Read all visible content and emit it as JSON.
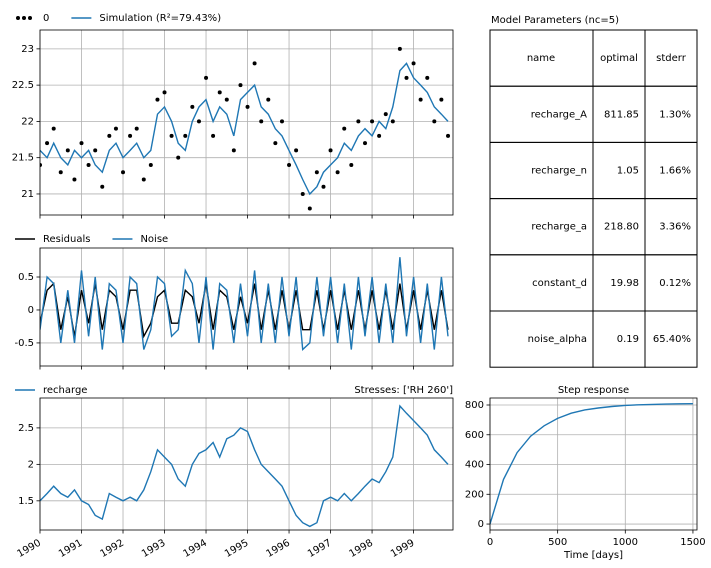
{
  "chart_data": [
    {
      "type": "line",
      "x": [
        1990.0,
        1990.17,
        1990.33,
        1990.5,
        1990.67,
        1990.83,
        1991.0,
        1991.17,
        1991.33,
        1991.5,
        1991.67,
        1991.83,
        1992.0,
        1992.17,
        1992.33,
        1992.5,
        1992.67,
        1992.83,
        1993.0,
        1993.17,
        1993.33,
        1993.5,
        1993.67,
        1993.83,
        1994.0,
        1994.17,
        1994.33,
        1994.5,
        1994.67,
        1994.83,
        1995.0,
        1995.17,
        1995.33,
        1995.5,
        1995.67,
        1995.83,
        1996.0,
        1996.17,
        1996.33,
        1996.5,
        1996.67,
        1996.83,
        1997.0,
        1997.17,
        1997.33,
        1997.5,
        1997.67,
        1997.83,
        1998.0,
        1998.17,
        1998.33,
        1998.5,
        1998.67,
        1998.83,
        1999.0,
        1999.17,
        1999.33,
        1999.5,
        1999.67,
        1999.83
      ],
      "series": [
        {
          "name": "0",
          "color": "#000000",
          "style": "scatter",
          "values": [
            21.4,
            21.7,
            21.9,
            21.3,
            21.6,
            21.2,
            21.7,
            21.4,
            21.6,
            21.1,
            21.8,
            21.9,
            21.3,
            21.8,
            21.9,
            21.2,
            21.4,
            22.3,
            22.4,
            21.8,
            21.5,
            21.8,
            22.2,
            22.0,
            22.6,
            21.8,
            22.4,
            22.3,
            21.6,
            22.5,
            22.2,
            22.8,
            22.0,
            22.3,
            21.7,
            22.0,
            21.4,
            21.6,
            21.0,
            20.8,
            21.3,
            21.1,
            21.6,
            21.3,
            21.9,
            21.4,
            22.0,
            21.7,
            22.0,
            21.8,
            22.1,
            22.0,
            23.0,
            22.6,
            22.8,
            22.3,
            22.6,
            22.0,
            22.3,
            21.8
          ]
        },
        {
          "name": "Simulation (R²=79.43%)",
          "color": "#1f77b4",
          "style": "line",
          "values": [
            21.6,
            21.5,
            21.7,
            21.5,
            21.4,
            21.6,
            21.5,
            21.6,
            21.4,
            21.3,
            21.6,
            21.7,
            21.5,
            21.6,
            21.7,
            21.5,
            21.6,
            22.1,
            22.2,
            22.0,
            21.7,
            21.6,
            22.0,
            22.2,
            22.3,
            22.0,
            22.2,
            22.1,
            21.8,
            22.3,
            22.4,
            22.5,
            22.2,
            22.1,
            21.9,
            21.8,
            21.6,
            21.4,
            21.2,
            21.0,
            21.1,
            21.3,
            21.4,
            21.5,
            21.7,
            21.6,
            21.8,
            21.9,
            21.8,
            22.0,
            21.9,
            22.2,
            22.7,
            22.8,
            22.6,
            22.5,
            22.4,
            22.2,
            22.1,
            22.0
          ]
        }
      ],
      "xlim": [
        1990,
        1999.95
      ],
      "ylim": [
        20.71,
        23.26
      ],
      "yticks": [
        21.0,
        21.5,
        22.0,
        22.5,
        23.0
      ],
      "grid": true
    },
    {
      "type": "line",
      "x": [
        1990.0,
        1990.17,
        1990.33,
        1990.5,
        1990.67,
        1990.83,
        1991.0,
        1991.17,
        1991.33,
        1991.5,
        1991.67,
        1991.83,
        1992.0,
        1992.17,
        1992.33,
        1992.5,
        1992.67,
        1992.83,
        1993.0,
        1993.17,
        1993.33,
        1993.5,
        1993.67,
        1993.83,
        1994.0,
        1994.17,
        1994.33,
        1994.5,
        1994.67,
        1994.83,
        1995.0,
        1995.17,
        1995.33,
        1995.5,
        1995.67,
        1995.83,
        1996.0,
        1996.17,
        1996.33,
        1996.5,
        1996.67,
        1996.83,
        1997.0,
        1997.17,
        1997.33,
        1997.5,
        1997.67,
        1997.83,
        1998.0,
        1998.17,
        1998.33,
        1998.5,
        1998.67,
        1998.83,
        1999.0,
        1999.17,
        1999.33,
        1999.5,
        1999.67,
        1999.83
      ],
      "series": [
        {
          "name": "Residuals",
          "color": "#000000",
          "style": "line",
          "values": [
            -0.2,
            0.3,
            0.4,
            -0.3,
            0.2,
            -0.4,
            0.3,
            -0.2,
            0.4,
            -0.3,
            0.3,
            0.2,
            -0.3,
            0.3,
            0.3,
            -0.4,
            -0.2,
            0.2,
            0.3,
            -0.2,
            -0.2,
            0.3,
            0.2,
            -0.2,
            0.4,
            -0.3,
            0.3,
            0.2,
            -0.3,
            0.2,
            -0.2,
            0.4,
            -0.3,
            0.3,
            -0.3,
            0.3,
            -0.3,
            0.3,
            -0.3,
            -0.3,
            0.3,
            -0.3,
            0.3,
            -0.3,
            0.3,
            -0.3,
            0.3,
            -0.3,
            0.3,
            -0.3,
            0.3,
            -0.3,
            0.4,
            -0.3,
            0.3,
            -0.3,
            0.3,
            -0.3,
            0.3,
            -0.3
          ]
        },
        {
          "name": "Noise",
          "color": "#1f77b4",
          "style": "line",
          "values": [
            -0.3,
            0.5,
            0.4,
            -0.5,
            0.3,
            -0.5,
            0.6,
            -0.4,
            0.5,
            -0.6,
            0.4,
            0.3,
            -0.5,
            0.5,
            0.4,
            -0.6,
            -0.3,
            0.5,
            0.4,
            -0.4,
            -0.3,
            0.6,
            0.4,
            -0.5,
            0.5,
            -0.6,
            0.4,
            0.3,
            -0.5,
            0.4,
            -0.4,
            0.6,
            -0.5,
            0.4,
            -0.5,
            0.5,
            -0.4,
            0.5,
            -0.6,
            -0.5,
            0.5,
            -0.4,
            0.5,
            -0.5,
            0.4,
            -0.6,
            0.5,
            -0.4,
            0.5,
            -0.5,
            0.4,
            -0.5,
            0.8,
            -0.4,
            0.5,
            -0.5,
            0.4,
            -0.6,
            0.5,
            -0.4
          ]
        }
      ],
      "xlim": [
        1990,
        1999.95
      ],
      "ylim": [
        -0.85,
        0.94
      ],
      "yticks": [
        -0.5,
        0.0,
        0.5
      ],
      "grid": true
    },
    {
      "type": "line",
      "title": "Stresses: ['RH 260']",
      "x": [
        1990.0,
        1990.17,
        1990.33,
        1990.5,
        1990.67,
        1990.83,
        1991.0,
        1991.17,
        1991.33,
        1991.5,
        1991.67,
        1991.83,
        1992.0,
        1992.17,
        1992.33,
        1992.5,
        1992.67,
        1992.83,
        1993.0,
        1993.17,
        1993.33,
        1993.5,
        1993.67,
        1993.83,
        1994.0,
        1994.17,
        1994.33,
        1994.5,
        1994.67,
        1994.83,
        1995.0,
        1995.17,
        1995.33,
        1995.5,
        1995.67,
        1995.83,
        1996.0,
        1996.17,
        1996.33,
        1996.5,
        1996.67,
        1996.83,
        1997.0,
        1997.17,
        1997.33,
        1997.5,
        1997.67,
        1997.83,
        1998.0,
        1998.17,
        1998.33,
        1998.5,
        1998.67,
        1998.83,
        1999.0,
        1999.17,
        1999.33,
        1999.5,
        1999.67,
        1999.83
      ],
      "series": [
        {
          "name": "recharge",
          "color": "#1f77b4",
          "style": "line",
          "values": [
            1.5,
            1.6,
            1.7,
            1.6,
            1.55,
            1.65,
            1.5,
            1.45,
            1.3,
            1.25,
            1.6,
            1.55,
            1.5,
            1.55,
            1.5,
            1.65,
            1.9,
            2.2,
            2.1,
            2.0,
            1.8,
            1.7,
            2.0,
            2.15,
            2.2,
            2.3,
            2.1,
            2.35,
            2.4,
            2.5,
            2.45,
            2.2,
            2.0,
            1.9,
            1.8,
            1.7,
            1.5,
            1.3,
            1.2,
            1.15,
            1.2,
            1.5,
            1.55,
            1.5,
            1.6,
            1.5,
            1.6,
            1.7,
            1.8,
            1.75,
            1.9,
            2.1,
            2.8,
            2.7,
            2.6,
            2.5,
            2.4,
            2.2,
            2.1,
            2.0
          ]
        }
      ],
      "xlim": [
        1990,
        1999.95
      ],
      "xticks": [
        1990,
        1991,
        1992,
        1993,
        1994,
        1995,
        1996,
        1997,
        1998,
        1999
      ],
      "ylim": [
        1.1,
        2.91
      ],
      "yticks": [
        1.5,
        2.0,
        2.5
      ],
      "grid": true
    },
    {
      "type": "line",
      "title": "Step response",
      "xlabel": "Time [days]",
      "x": [
        0,
        100,
        200,
        300,
        400,
        500,
        600,
        700,
        800,
        900,
        1000,
        1100,
        1200,
        1300,
        1400,
        1500
      ],
      "series": [
        {
          "color": "#1f77b4",
          "style": "line",
          "values": [
            0,
            300,
            480,
            590,
            660,
            710,
            745,
            767,
            780,
            790,
            797,
            801,
            804,
            806,
            808,
            809
          ]
        }
      ],
      "xlim": [
        0,
        1530
      ],
      "xticks": [
        0,
        500,
        1000,
        1500
      ],
      "ylim": [
        -40,
        847
      ],
      "yticks": [
        0,
        200,
        400,
        600,
        800
      ],
      "grid": true
    }
  ],
  "table": {
    "title": "Model Parameters (nc=5)",
    "header": [
      "name",
      "optimal",
      "stderr"
    ],
    "rows": [
      [
        "recharge_A",
        "811.85",
        "1.30%"
      ],
      [
        "recharge_n",
        "1.05",
        "1.66%"
      ],
      [
        "recharge_a",
        "218.80",
        "3.36%"
      ],
      [
        "constant_d",
        "19.98",
        "0.12%"
      ],
      [
        "noise_alpha",
        "0.19",
        "65.40%"
      ]
    ]
  }
}
